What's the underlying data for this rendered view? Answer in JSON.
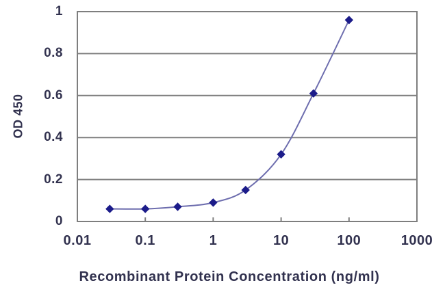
{
  "chart_data": {
    "type": "line",
    "title": "",
    "xlabel": "Recombinant Protein Concentration (ng/ml)",
    "ylabel": "OD 450",
    "x_scale": "log",
    "xlim": [
      0.01,
      1000
    ],
    "ylim": [
      0,
      1
    ],
    "x": [
      0.03,
      0.1,
      0.3,
      1,
      3,
      10,
      30,
      100
    ],
    "y": [
      0.06,
      0.06,
      0.07,
      0.09,
      0.15,
      0.32,
      0.61,
      0.96
    ],
    "x_ticks": [
      "0.01",
      "0.1",
      "1",
      "10",
      "100",
      "1000"
    ],
    "x_tick_values": [
      0.01,
      0.1,
      1,
      10,
      100,
      1000
    ],
    "y_ticks": [
      "0",
      "0.2",
      "0.4",
      "0.6",
      "0.8",
      "1"
    ],
    "y_tick_values": [
      0,
      0.2,
      0.4,
      0.6,
      0.8,
      1
    ],
    "grid": "horizontal",
    "legend": "none",
    "marker": "diamond",
    "line_color": "#6d6dae",
    "marker_color": "#1c1c8a",
    "grid_color": "#7e7e7e",
    "text_color": "#32324f",
    "background_color": "#ffffff"
  }
}
